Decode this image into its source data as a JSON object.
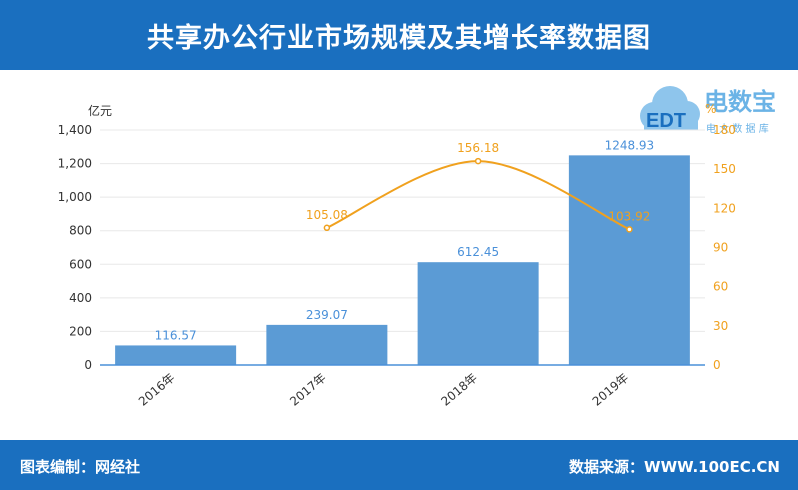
{
  "header": {
    "title": "共享办公行业市场规模及其增长率数据图"
  },
  "footer": {
    "left": "图表编制：网经社",
    "right": "数据来源：WWW.100EC.CN"
  },
  "logo": {
    "brand": "电数宝",
    "sub": "电 大 数 据 库",
    "letters": "EDT"
  },
  "colors": {
    "header": "#1a6fbf",
    "bar": "#5b9bd5",
    "line": "#f0a11e"
  },
  "chart_data": {
    "type": "bar",
    "categories": [
      "2016年",
      "2017年",
      "2018年",
      "2019年"
    ],
    "series": [
      {
        "values": [
          116.57,
          239.07,
          612.45,
          1248.93
        ],
        "axis": "left",
        "type": "bar"
      },
      {
        "values": [
          null,
          105.08,
          156.18,
          103.92
        ],
        "axis": "right",
        "type": "line"
      }
    ],
    "y_left": {
      "unit": "亿元",
      "ylim": [
        0,
        1400
      ],
      "ticks": [
        0,
        200,
        400,
        600,
        800,
        1000,
        1200,
        1400
      ],
      "tick_labels": [
        "0",
        "200",
        "400",
        "600",
        "800",
        "1,000",
        "1,200",
        "1,400"
      ]
    },
    "y_right": {
      "unit": "%",
      "ylim": [
        0,
        180
      ],
      "ticks": [
        0,
        30,
        60,
        90,
        120,
        150,
        180
      ],
      "tick_labels": [
        "0",
        "30",
        "60",
        "90",
        "120",
        "150",
        "180"
      ]
    },
    "bar_labels": [
      "116.57",
      "239.07",
      "612.45",
      "1248.93"
    ],
    "line_labels": [
      "",
      "105.08",
      "156.18",
      "103.92"
    ],
    "grid": true
  }
}
